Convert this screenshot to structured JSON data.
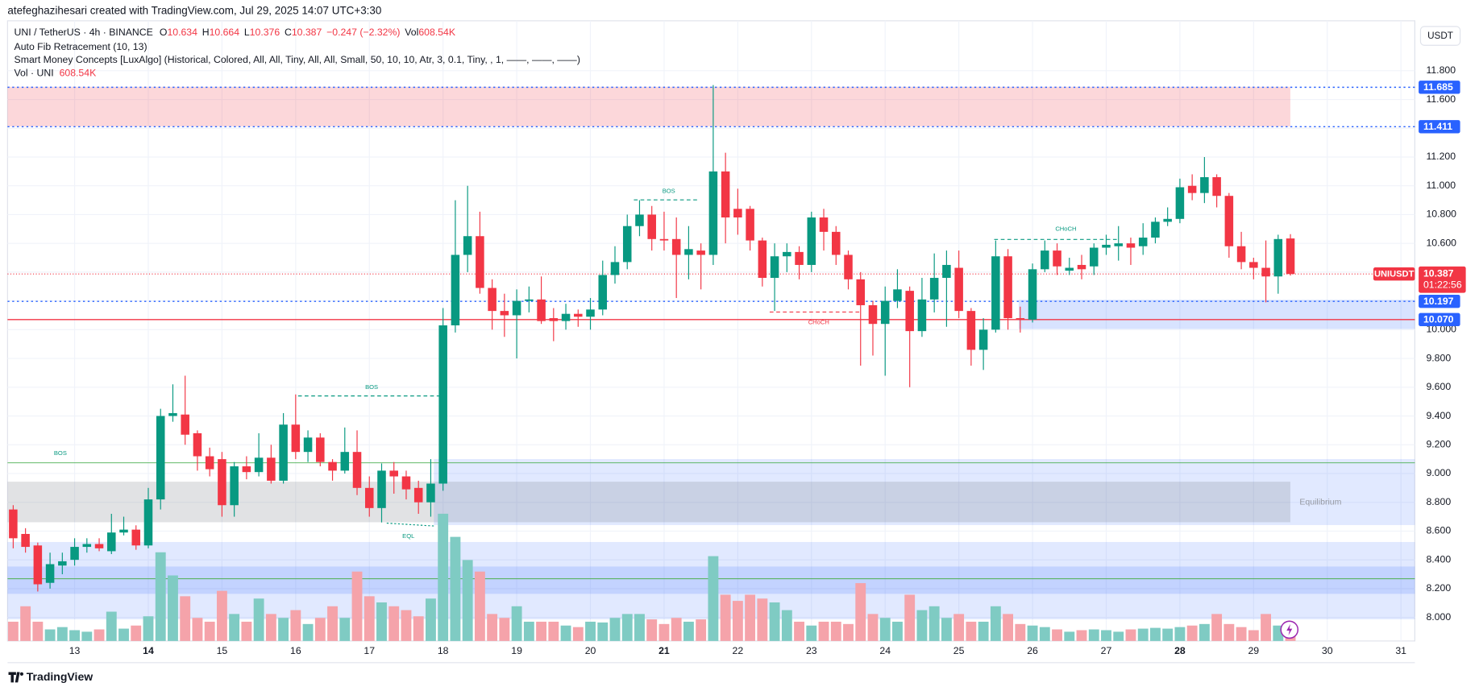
{
  "header": {
    "author_line": "atefeghazihesari created with TradingView.com, Jul 29, 2025 14:07 UTC+3:30"
  },
  "chart_data": {
    "type": "candlestick",
    "legend": {
      "symbol": "UNI / TetherUS · 4h · BINANCE",
      "o_label": "O",
      "open": 10.634,
      "h_label": "H",
      "high": 10.664,
      "l_label": "L",
      "low": 10.376,
      "c_label": "C",
      "close": 10.387,
      "change": "−0.247 (−2.32%)",
      "vol_label": "Vol",
      "volume": {
        "value": 608.54,
        "label": "608.54K"
      }
    },
    "indicators": [
      "Auto Fib Retracement (10, 13)",
      "Smart Money Concepts [LuxAlgo] (Historical, Colored, All, All, Tiny, All, All, Small, 50, 10, 10, Atr, 3, 0.1, Tiny, , 1, ——, ——, ——)"
    ],
    "volume_legend": {
      "name": "Vol · UNI",
      "value": {
        "value": 608.54,
        "label": "608.54K"
      }
    },
    "currency": "USDT",
    "x_labels": [
      "13",
      "14",
      "15",
      "16",
      "17",
      "18",
      "19",
      "20",
      "21",
      "22",
      "23",
      "24",
      "25",
      "26",
      "27",
      "28",
      "29",
      "30",
      "31"
    ],
    "open": [
      8.75,
      8.58,
      8.5,
      8.24,
      8.36,
      8.4,
      8.49,
      8.51,
      8.46,
      8.59,
      8.61,
      8.5,
      8.82,
      9.4,
      9.41,
      9.28,
      9.12,
      9.1,
      8.78,
      9.05,
      9.01,
      9.11,
      8.95,
      9.34,
      9.15,
      9.25,
      9.08,
      9.02,
      9.15,
      8.9,
      8.76,
      9.02,
      8.98,
      8.9,
      8.8,
      8.93,
      10.03,
      10.52,
      10.65,
      10.29,
      10.13,
      10.1,
      10.2,
      10.21,
      10.08,
      10.06,
      10.11,
      10.09,
      10.14,
      10.38,
      10.47,
      10.72,
      10.8,
      10.63,
      10.63,
      10.52,
      10.55,
      10.52,
      11.1,
      10.84,
      10.84,
      10.62,
      10.36,
      10.51,
      10.54,
      10.45,
      10.78,
      10.68,
      10.52,
      10.35,
      10.17,
      10.04,
      10.2,
      10.27,
      9.99,
      10.21,
      10.36,
      10.43,
      10.13,
      9.86,
      10.0,
      10.51,
      10.08,
      10.07,
      10.42,
      10.55,
      10.41,
      10.45,
      10.44,
      10.57,
      10.58,
      10.6,
      10.58,
      10.64,
      10.75,
      10.77,
      11.0,
      10.95,
      11.06,
      10.93,
      10.58,
      10.47,
      10.43,
      10.37,
      10.634
    ],
    "high": [
      8.78,
      8.62,
      8.52,
      8.45,
      8.45,
      8.55,
      8.55,
      8.55,
      8.72,
      8.7,
      8.64,
      8.9,
      9.45,
      9.62,
      9.68,
      9.3,
      9.18,
      9.15,
      9.08,
      9.12,
      9.28,
      9.2,
      9.42,
      9.55,
      9.3,
      9.28,
      9.1,
      9.32,
      9.3,
      8.98,
      9.07,
      9.08,
      9.02,
      8.95,
      9.1,
      10.15,
      10.9,
      11.0,
      10.82,
      10.35,
      10.25,
      10.28,
      10.3,
      10.37,
      10.15,
      10.18,
      10.14,
      10.22,
      10.48,
      10.58,
      10.8,
      10.9,
      10.86,
      10.82,
      10.78,
      10.72,
      10.6,
      11.7,
      11.23,
      10.98,
      10.86,
      10.64,
      10.6,
      10.6,
      10.58,
      10.82,
      10.84,
      10.72,
      10.55,
      10.4,
      10.2,
      10.3,
      10.42,
      10.3,
      10.36,
      10.53,
      10.55,
      10.55,
      10.15,
      10.08,
      10.62,
      10.56,
      10.16,
      10.46,
      10.62,
      10.6,
      10.5,
      10.52,
      10.6,
      10.66,
      10.72,
      10.64,
      10.74,
      10.78,
      10.85,
      11.05,
      11.08,
      11.2,
      11.08,
      10.95,
      10.68,
      10.5,
      10.62,
      10.66,
      10.664
    ],
    "low": [
      8.48,
      8.45,
      8.18,
      8.2,
      8.3,
      8.36,
      8.45,
      8.46,
      8.44,
      8.57,
      8.47,
      8.48,
      8.75,
      9.36,
      9.2,
      9.02,
      8.98,
      8.7,
      8.7,
      8.96,
      8.98,
      8.93,
      8.93,
      9.1,
      9.08,
      9.05,
      8.95,
      9.0,
      8.85,
      8.7,
      8.66,
      8.86,
      8.82,
      8.72,
      8.7,
      8.88,
      9.98,
      10.4,
      10.25,
      10.0,
      9.95,
      9.8,
      10.12,
      10.04,
      9.92,
      10.0,
      10.02,
      10.0,
      10.1,
      10.32,
      10.42,
      10.65,
      10.55,
      10.55,
      10.22,
      10.35,
      10.28,
      10.45,
      10.6,
      10.66,
      10.55,
      10.3,
      10.13,
      10.4,
      10.35,
      10.4,
      10.55,
      10.45,
      10.28,
      9.75,
      9.82,
      9.68,
      10.15,
      9.6,
      9.95,
      10.12,
      10.02,
      10.08,
      9.75,
      9.72,
      9.98,
      10.0,
      9.98,
      10.05,
      10.4,
      10.38,
      10.38,
      10.35,
      10.38,
      10.52,
      10.48,
      10.45,
      10.52,
      10.6,
      10.72,
      10.74,
      10.9,
      10.88,
      10.85,
      10.5,
      10.42,
      10.35,
      10.19,
      10.25,
      10.376
    ],
    "close": [
      8.55,
      8.49,
      8.23,
      8.37,
      8.39,
      8.49,
      8.51,
      8.48,
      8.59,
      8.61,
      8.5,
      8.82,
      9.4,
      9.42,
      9.27,
      9.12,
      9.03,
      8.78,
      9.05,
      9.01,
      9.11,
      8.95,
      9.34,
      9.15,
      9.25,
      9.08,
      9.02,
      9.15,
      8.9,
      8.76,
      9.02,
      8.98,
      8.89,
      8.8,
      8.93,
      10.03,
      10.52,
      10.65,
      10.29,
      10.13,
      10.1,
      10.2,
      10.21,
      10.06,
      10.06,
      10.11,
      10.09,
      10.14,
      10.38,
      10.47,
      10.72,
      10.8,
      10.63,
      10.62,
      10.52,
      10.56,
      10.52,
      11.1,
      10.78,
      10.78,
      10.62,
      10.36,
      10.51,
      10.54,
      10.45,
      10.78,
      10.68,
      10.52,
      10.35,
      10.17,
      10.04,
      10.2,
      10.28,
      9.99,
      10.21,
      10.36,
      10.45,
      10.13,
      9.86,
      10.0,
      10.51,
      10.08,
      10.07,
      10.42,
      10.55,
      10.44,
      10.43,
      10.42,
      10.57,
      10.59,
      10.6,
      10.57,
      10.64,
      10.75,
      10.77,
      10.99,
      10.95,
      11.06,
      10.93,
      10.58,
      10.47,
      10.43,
      10.37,
      10.63,
      10.387
    ],
    "volume": [
      750,
      1350,
      750,
      450,
      540,
      420,
      360,
      450,
      1140,
      480,
      600,
      960,
      3450,
      2550,
      1740,
      900,
      750,
      1950,
      1050,
      750,
      1650,
      1050,
      900,
      1200,
      660,
      900,
      1350,
      900,
      2700,
      1740,
      1500,
      1350,
      1200,
      960,
      1650,
      4950,
      4050,
      3150,
      2700,
      1050,
      900,
      1350,
      750,
      750,
      750,
      600,
      540,
      750,
      720,
      900,
      1050,
      1050,
      840,
      660,
      900,
      750,
      840,
      3300,
      1800,
      1560,
      1800,
      1650,
      1500,
      1200,
      750,
      600,
      750,
      750,
      660,
      2250,
      1050,
      900,
      750,
      1800,
      1200,
      1350,
      900,
      1050,
      750,
      750,
      1350,
      1050,
      660,
      600,
      540,
      450,
      360,
      420,
      450,
      420,
      360,
      450,
      480,
      510,
      480,
      540,
      600,
      660,
      1050,
      660,
      540,
      420,
      1050,
      600,
      608.54
    ],
    "colors": {
      "up": "#089981",
      "down": "#f23645",
      "up_volume": "#7fcbc3",
      "down_volume": "#f5a3aa"
    },
    "ylim": [
      7.836,
      12.147
    ],
    "yticks": [
      {
        "value": 8,
        "label": "8.000"
      },
      {
        "value": 8.2,
        "label": "8.200"
      },
      {
        "value": 8.4,
        "label": "8.400"
      },
      {
        "value": 8.6,
        "label": "8.600"
      },
      {
        "value": 8.8,
        "label": "8.800"
      },
      {
        "value": 9,
        "label": "9.000"
      },
      {
        "value": 9.2,
        "label": "9.200"
      },
      {
        "value": 9.4,
        "label": "9.400"
      },
      {
        "value": 9.6,
        "label": "9.600"
      },
      {
        "value": 9.8,
        "label": "9.800"
      },
      {
        "value": 10,
        "label": "10.000"
      },
      {
        "value": 10.2,
        "label": "10.200"
      },
      {
        "value": 10.4,
        "label": "10.400"
      },
      {
        "value": 10.6,
        "label": "10.600"
      },
      {
        "value": 10.8,
        "label": "10.800"
      },
      {
        "value": 11,
        "label": "11.000"
      },
      {
        "value": 11.2,
        "label": "11.200"
      },
      {
        "value": 11.4,
        "label": "11.400"
      },
      {
        "value": 11.6,
        "label": "11.600"
      },
      {
        "value": 11.8,
        "label": "11.800"
      }
    ],
    "grid": true,
    "price_levels": [
      11.685,
      11.411,
      10.197,
      {
        "value": 10.07,
        "label": "10.070"
      }
    ],
    "last_price": {
      "symbol_tag": "UNIUSDT",
      "price": 10.387,
      "countdown": "01:22:56"
    },
    "annotations": [
      "BOS",
      "BOS",
      "BOS",
      "CHoCH",
      "CHoCH",
      "EQL",
      "Equilibrium"
    ]
  },
  "footer": {
    "brand": "TradingView"
  }
}
